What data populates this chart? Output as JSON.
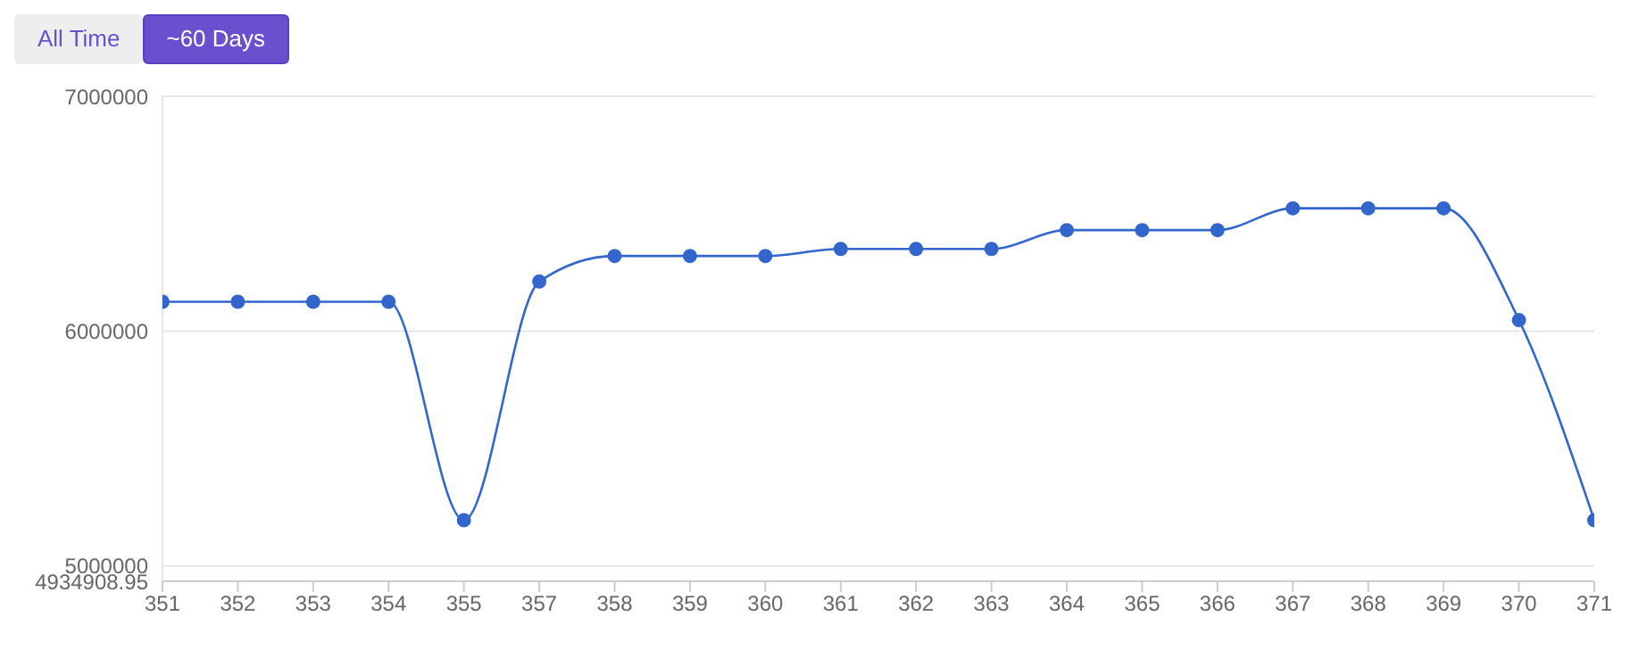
{
  "chart_data": {
    "type": "line",
    "categories": [
      "351",
      "352",
      "353",
      "354",
      "355",
      "357",
      "358",
      "359",
      "360",
      "361",
      "362",
      "363",
      "364",
      "365",
      "366",
      "367",
      "368",
      "369",
      "370",
      "371"
    ],
    "series": [
      {
        "color": "#3366cc",
        "values": [
          6125000,
          6125000,
          6125000,
          6125000,
          5195000,
          6211000,
          6320000,
          6320000,
          6320000,
          6350000,
          6350000,
          6350000,
          6430000,
          6430000,
          6430000,
          6523000,
          6523000,
          6523000,
          6047000,
          5195000
        ]
      }
    ],
    "ylim": [
      4934908.95,
      7000000
    ],
    "yticks": [
      4934908.95,
      5000000,
      6000000,
      7000000
    ],
    "grid": "y",
    "marker": "circle",
    "line_style": "solid",
    "annotations": [
      "All Time",
      "~60 Days"
    ]
  }
}
